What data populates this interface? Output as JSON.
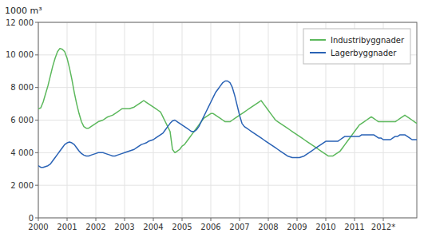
{
  "chart_data": {
    "type": "line",
    "title": "1000 m³",
    "legend": "upper right",
    "grid": true,
    "xlim": [
      2000,
      2013.1666666667
    ],
    "xticks": [
      2000,
      2001,
      2002,
      2003,
      2004,
      2005,
      2006,
      2007,
      2008,
      2009,
      2010,
      2011,
      {
        "value": 2012,
        "label": "2012*"
      }
    ],
    "ylim": [
      0,
      12000
    ],
    "yticks": [
      0,
      {
        "value": 2000,
        "label": "2 000"
      },
      {
        "value": 4000,
        "label": "4 000"
      },
      {
        "value": 6000,
        "label": "6 000"
      },
      {
        "value": 8000,
        "label": "8 000"
      },
      {
        "value": 10000,
        "label": "10 000"
      },
      {
        "value": 12000,
        "label": "12 000"
      }
    ],
    "x": [
      2000,
      2000.0833333333,
      2000.1666666667,
      2000.25,
      2000.3333333333,
      2000.4166666667,
      2000.5,
      2000.5833333333,
      2000.6666666667,
      2000.75,
      2000.8333333333,
      2000.9166666667,
      2001,
      2001.0833333333,
      2001.1666666667,
      2001.25,
      2001.3333333333,
      2001.4166666667,
      2001.5,
      2001.5833333333,
      2001.6666666667,
      2001.75,
      2001.8333333333,
      2001.9166666667,
      2002,
      2002.0833333333,
      2002.1666666667,
      2002.25,
      2002.3333333333,
      2002.4166666667,
      2002.5,
      2002.5833333333,
      2002.6666666667,
      2002.75,
      2002.8333333333,
      2002.9166666667,
      2003,
      2003.0833333333,
      2003.1666666667,
      2003.25,
      2003.3333333333,
      2003.4166666667,
      2003.5,
      2003.5833333333,
      2003.6666666667,
      2003.75,
      2003.8333333333,
      2003.9166666667,
      2004,
      2004.0833333333,
      2004.1666666667,
      2004.25,
      2004.3333333333,
      2004.4166666667,
      2004.5,
      2004.5833333333,
      2004.6666666667,
      2004.75,
      2004.8333333333,
      2004.9166666667,
      2005,
      2005.0833333333,
      2005.1666666667,
      2005.25,
      2005.3333333333,
      2005.4166666667,
      2005.5,
      2005.5833333333,
      2005.6666666667,
      2005.75,
      2005.8333333333,
      2005.9166666667,
      2006,
      2006.0833333333,
      2006.1666666667,
      2006.25,
      2006.3333333333,
      2006.4166666667,
      2006.5,
      2006.5833333333,
      2006.6666666667,
      2006.75,
      2006.8333333333,
      2006.9166666667,
      2007,
      2007.0833333333,
      2007.1666666667,
      2007.25,
      2007.3333333333,
      2007.4166666667,
      2007.5,
      2007.5833333333,
      2007.6666666667,
      2007.75,
      2007.8333333333,
      2007.9166666667,
      2008,
      2008.0833333333,
      2008.1666666667,
      2008.25,
      2008.3333333333,
      2008.4166666667,
      2008.5,
      2008.5833333333,
      2008.6666666667,
      2008.75,
      2008.8333333333,
      2008.9166666667,
      2009,
      2009.0833333333,
      2009.1666666667,
      2009.25,
      2009.3333333333,
      2009.4166666667,
      2009.5,
      2009.5833333333,
      2009.6666666667,
      2009.75,
      2009.8333333333,
      2009.9166666667,
      2010,
      2010.0833333333,
      2010.1666666667,
      2010.25,
      2010.3333333333,
      2010.4166666667,
      2010.5,
      2010.5833333333,
      2010.6666666667,
      2010.75,
      2010.8333333333,
      2010.9166666667,
      2011,
      2011.0833333333,
      2011.1666666667,
      2011.25,
      2011.3333333333,
      2011.4166666667,
      2011.5,
      2011.5833333333,
      2011.6666666667,
      2011.75,
      2011.8333333333,
      2011.9166666667,
      2012,
      2012.0833333333,
      2012.1666666667,
      2012.25,
      2012.3333333333,
      2012.4166666667,
      2012.5,
      2012.5833333333,
      2012.6666666667,
      2012.75,
      2012.8333333333,
      2012.9166666667,
      2013,
      2013.0833333333,
      2013.1666666667
    ],
    "series": [
      {
        "name": "Industribyggnader",
        "color": "#5cb85c",
        "values": [
          6700,
          6750,
          7100,
          7600,
          8100,
          8700,
          9300,
          9800,
          10200,
          10400,
          10350,
          10200,
          9800,
          9200,
          8500,
          7700,
          7000,
          6400,
          5900,
          5600,
          5500,
          5500,
          5600,
          5700,
          5800,
          5900,
          5950,
          6000,
          6100,
          6200,
          6250,
          6300,
          6400,
          6500,
          6600,
          6700,
          6700,
          6700,
          6700,
          6750,
          6800,
          6900,
          7000,
          7100,
          7200,
          7100,
          7000,
          6900,
          6800,
          6700,
          6600,
          6500,
          6200,
          5900,
          5600,
          5300,
          4200,
          4000,
          4100,
          4200,
          4400,
          4500,
          4700,
          4900,
          5100,
          5300,
          5500,
          5700,
          5900,
          6100,
          6200,
          6300,
          6400,
          6400,
          6300,
          6200,
          6100,
          6000,
          5900,
          5900,
          5900,
          6000,
          6100,
          6200,
          6300,
          6400,
          6500,
          6600,
          6700,
          6800,
          6900,
          7000,
          7100,
          7200,
          7000,
          6800,
          6600,
          6400,
          6200,
          6000,
          5900,
          5800,
          5700,
          5600,
          5500,
          5400,
          5300,
          5200,
          5100,
          5000,
          4900,
          4800,
          4700,
          4600,
          4500,
          4400,
          4300,
          4200,
          4100,
          4000,
          3900,
          3800,
          3800,
          3800,
          3900,
          4000,
          4100,
          4300,
          4500,
          4700,
          4900,
          5100,
          5300,
          5500,
          5700,
          5800,
          5900,
          6000,
          6100,
          6200,
          6100,
          6000,
          5900,
          5900,
          5900,
          5900,
          5900,
          5900,
          5900,
          5900,
          6000,
          6100,
          6200,
          6300,
          6200,
          6100,
          6000,
          5900,
          5800
        ]
      },
      {
        "name": "Lagerbyggnader",
        "color": "#2962b5",
        "values": [
          3200,
          3100,
          3100,
          3150,
          3200,
          3300,
          3500,
          3700,
          3900,
          4100,
          4300,
          4500,
          4600,
          4650,
          4600,
          4500,
          4300,
          4100,
          3950,
          3850,
          3800,
          3800,
          3850,
          3900,
          3950,
          4000,
          4000,
          4000,
          3950,
          3900,
          3850,
          3800,
          3800,
          3850,
          3900,
          3950,
          4000,
          4050,
          4100,
          4150,
          4200,
          4300,
          4400,
          4500,
          4550,
          4600,
          4700,
          4750,
          4800,
          4900,
          5000,
          5100,
          5200,
          5400,
          5600,
          5800,
          5950,
          6000,
          5900,
          5800,
          5700,
          5600,
          5500,
          5400,
          5300,
          5300,
          5400,
          5600,
          5900,
          6200,
          6500,
          6800,
          7100,
          7400,
          7700,
          7900,
          8100,
          8300,
          8400,
          8400,
          8300,
          8000,
          7500,
          6900,
          6300,
          5800,
          5600,
          5500,
          5400,
          5300,
          5200,
          5100,
          5000,
          4900,
          4800,
          4700,
          4600,
          4500,
          4400,
          4300,
          4200,
          4100,
          4000,
          3900,
          3800,
          3750,
          3700,
          3700,
          3700,
          3700,
          3750,
          3800,
          3900,
          4000,
          4100,
          4200,
          4300,
          4400,
          4500,
          4600,
          4700,
          4700,
          4700,
          4700,
          4700,
          4700,
          4800,
          4900,
          5000,
          5000,
          5000,
          5000,
          5000,
          5000,
          5000,
          5100,
          5100,
          5100,
          5100,
          5100,
          5100,
          5000,
          4900,
          4900,
          4800,
          4800,
          4800,
          4800,
          4900,
          5000,
          5000,
          5100,
          5100,
          5100,
          5000,
          4900,
          4800,
          4800,
          4800
        ]
      }
    ]
  }
}
